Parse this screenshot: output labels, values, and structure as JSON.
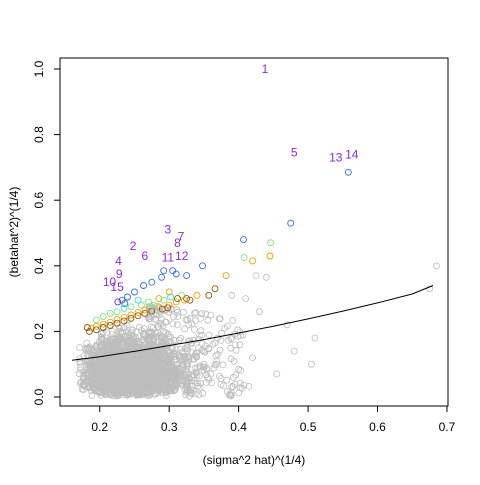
{
  "chart_data": {
    "type": "scatter",
    "xlabel": "(sigma^2 hat)^(1/4)",
    "ylabel": "(betahat^2)^(1/4)",
    "xlim": [
      0.16,
      0.69
    ],
    "ylim": [
      0.0,
      1.0
    ],
    "x_ticks": [
      "0.2",
      "0.3",
      "0.4",
      "0.5",
      "0.6",
      "0.7"
    ],
    "y_ticks": [
      "0.0",
      "0.2",
      "0.4",
      "0.6",
      "0.8",
      "1.0"
    ],
    "colors": {
      "background": "#bdbdbd",
      "brown": "#8b5a14",
      "orange": "#f5a000",
      "green": "#7ee67e",
      "cyan": "#40e0d0",
      "blue": "#3a6fe0",
      "purple": "#6b2bd6",
      "label": "#8a2be2",
      "curve": "#000000"
    },
    "trend_curve": {
      "x": [
        0.16,
        0.2,
        0.25,
        0.3,
        0.35,
        0.4,
        0.45,
        0.5,
        0.55,
        0.6,
        0.65,
        0.68
      ],
      "y": [
        0.112,
        0.123,
        0.139,
        0.157,
        0.175,
        0.195,
        0.216,
        0.238,
        0.262,
        0.287,
        0.314,
        0.34
      ]
    },
    "labeled_points": [
      {
        "label": "1",
        "x": 0.438,
        "y": 1.0
      },
      {
        "label": "5",
        "x": 0.48,
        "y": 0.745
      },
      {
        "label": "13",
        "x": 0.54,
        "y": 0.73
      },
      {
        "label": "14",
        "x": 0.563,
        "y": 0.74
      },
      {
        "label": "3",
        "x": 0.298,
        "y": 0.51
      },
      {
        "label": "7",
        "x": 0.317,
        "y": 0.49
      },
      {
        "label": "8",
        "x": 0.312,
        "y": 0.47
      },
      {
        "label": "2",
        "x": 0.248,
        "y": 0.46
      },
      {
        "label": "6",
        "x": 0.265,
        "y": 0.43
      },
      {
        "label": "11",
        "x": 0.298,
        "y": 0.425
      },
      {
        "label": "12",
        "x": 0.318,
        "y": 0.43
      },
      {
        "label": "4",
        "x": 0.227,
        "y": 0.415
      },
      {
        "label": "9",
        "x": 0.228,
        "y": 0.375
      },
      {
        "label": "10",
        "x": 0.214,
        "y": 0.35
      },
      {
        "label": "15",
        "x": 0.225,
        "y": 0.335
      }
    ],
    "colored_points": [
      {
        "x": 0.558,
        "y": 0.685,
        "color": "blue"
      },
      {
        "x": 0.475,
        "y": 0.53,
        "color": "blue"
      },
      {
        "x": 0.407,
        "y": 0.48,
        "color": "blue"
      },
      {
        "x": 0.446,
        "y": 0.47,
        "color": "green"
      },
      {
        "x": 0.445,
        "y": 0.43,
        "color": "orange"
      },
      {
        "x": 0.42,
        "y": 0.415,
        "color": "orange"
      },
      {
        "x": 0.408,
        "y": 0.425,
        "color": "green"
      },
      {
        "x": 0.348,
        "y": 0.4,
        "color": "blue"
      },
      {
        "x": 0.382,
        "y": 0.37,
        "color": "orange"
      },
      {
        "x": 0.366,
        "y": 0.33,
        "color": "brown"
      },
      {
        "x": 0.325,
        "y": 0.37,
        "color": "blue"
      },
      {
        "x": 0.31,
        "y": 0.375,
        "color": "blue"
      },
      {
        "x": 0.305,
        "y": 0.385,
        "color": "blue"
      },
      {
        "x": 0.292,
        "y": 0.385,
        "color": "blue"
      },
      {
        "x": 0.289,
        "y": 0.365,
        "color": "blue"
      },
      {
        "x": 0.275,
        "y": 0.35,
        "color": "blue"
      },
      {
        "x": 0.263,
        "y": 0.34,
        "color": "blue"
      },
      {
        "x": 0.25,
        "y": 0.32,
        "color": "blue"
      },
      {
        "x": 0.24,
        "y": 0.305,
        "color": "blue"
      },
      {
        "x": 0.232,
        "y": 0.295,
        "color": "blue"
      },
      {
        "x": 0.226,
        "y": 0.29,
        "color": "purple"
      },
      {
        "x": 0.236,
        "y": 0.285,
        "color": "blue"
      },
      {
        "x": 0.3,
        "y": 0.32,
        "color": "orange"
      },
      {
        "x": 0.318,
        "y": 0.31,
        "color": "green"
      },
      {
        "x": 0.325,
        "y": 0.3,
        "color": "brown"
      },
      {
        "x": 0.34,
        "y": 0.31,
        "color": "orange"
      },
      {
        "x": 0.357,
        "y": 0.31,
        "color": "brown"
      },
      {
        "x": 0.33,
        "y": 0.295,
        "color": "brown"
      },
      {
        "x": 0.285,
        "y": 0.3,
        "color": "orange"
      },
      {
        "x": 0.27,
        "y": 0.29,
        "color": "green"
      },
      {
        "x": 0.26,
        "y": 0.28,
        "color": "green"
      },
      {
        "x": 0.255,
        "y": 0.295,
        "color": "cyan"
      },
      {
        "x": 0.245,
        "y": 0.275,
        "color": "green"
      },
      {
        "x": 0.235,
        "y": 0.27,
        "color": "cyan"
      },
      {
        "x": 0.225,
        "y": 0.26,
        "color": "green"
      },
      {
        "x": 0.215,
        "y": 0.255,
        "color": "green"
      },
      {
        "x": 0.205,
        "y": 0.245,
        "color": "green"
      },
      {
        "x": 0.195,
        "y": 0.235,
        "color": "green"
      },
      {
        "x": 0.285,
        "y": 0.275,
        "color": "orange"
      },
      {
        "x": 0.3,
        "y": 0.28,
        "color": "orange"
      },
      {
        "x": 0.31,
        "y": 0.29,
        "color": "orange"
      },
      {
        "x": 0.265,
        "y": 0.265,
        "color": "orange"
      },
      {
        "x": 0.255,
        "y": 0.258,
        "color": "orange"
      },
      {
        "x": 0.245,
        "y": 0.25,
        "color": "orange"
      },
      {
        "x": 0.235,
        "y": 0.243,
        "color": "orange"
      },
      {
        "x": 0.225,
        "y": 0.236,
        "color": "orange"
      },
      {
        "x": 0.215,
        "y": 0.228,
        "color": "orange"
      },
      {
        "x": 0.205,
        "y": 0.222,
        "color": "orange"
      },
      {
        "x": 0.195,
        "y": 0.216,
        "color": "orange"
      },
      {
        "x": 0.188,
        "y": 0.21,
        "color": "orange"
      },
      {
        "x": 0.275,
        "y": 0.262,
        "color": "brown"
      },
      {
        "x": 0.265,
        "y": 0.255,
        "color": "brown"
      },
      {
        "x": 0.255,
        "y": 0.248,
        "color": "brown"
      },
      {
        "x": 0.245,
        "y": 0.24,
        "color": "brown"
      },
      {
        "x": 0.235,
        "y": 0.232,
        "color": "brown"
      },
      {
        "x": 0.225,
        "y": 0.225,
        "color": "brown"
      },
      {
        "x": 0.215,
        "y": 0.218,
        "color": "brown"
      },
      {
        "x": 0.205,
        "y": 0.212,
        "color": "brown"
      },
      {
        "x": 0.195,
        "y": 0.205,
        "color": "brown"
      },
      {
        "x": 0.185,
        "y": 0.2,
        "color": "brown"
      },
      {
        "x": 0.182,
        "y": 0.212,
        "color": "brown"
      },
      {
        "x": 0.29,
        "y": 0.268,
        "color": "brown"
      },
      {
        "x": 0.298,
        "y": 0.272,
        "color": "brown"
      },
      {
        "x": 0.312,
        "y": 0.3,
        "color": "brown"
      },
      {
        "x": 0.322,
        "y": 0.295,
        "color": "orange"
      },
      {
        "x": 0.278,
        "y": 0.28,
        "color": "green"
      },
      {
        "x": 0.292,
        "y": 0.295,
        "color": "green"
      },
      {
        "x": 0.302,
        "y": 0.305,
        "color": "cyan"
      }
    ],
    "gray_outliers": [
      {
        "x": 0.685,
        "y": 0.4
      },
      {
        "x": 0.675,
        "y": 0.33
      },
      {
        "x": 0.425,
        "y": 0.37
      },
      {
        "x": 0.44,
        "y": 0.365
      },
      {
        "x": 0.41,
        "y": 0.3
      },
      {
        "x": 0.43,
        "y": 0.26
      },
      {
        "x": 0.47,
        "y": 0.22
      },
      {
        "x": 0.51,
        "y": 0.18
      },
      {
        "x": 0.505,
        "y": 0.1
      },
      {
        "x": 0.48,
        "y": 0.14
      },
      {
        "x": 0.455,
        "y": 0.07
      },
      {
        "x": 0.42,
        "y": 0.12
      },
      {
        "x": 0.4,
        "y": 0.085
      },
      {
        "x": 0.39,
        "y": 0.18
      },
      {
        "x": 0.38,
        "y": 0.21
      },
      {
        "x": 0.37,
        "y": 0.13
      },
      {
        "x": 0.36,
        "y": 0.07
      },
      {
        "x": 0.35,
        "y": 0.1
      },
      {
        "x": 0.342,
        "y": 0.15
      },
      {
        "x": 0.33,
        "y": 0.24
      },
      {
        "x": 0.36,
        "y": 0.25
      },
      {
        "x": 0.39,
        "y": 0.31
      }
    ]
  }
}
